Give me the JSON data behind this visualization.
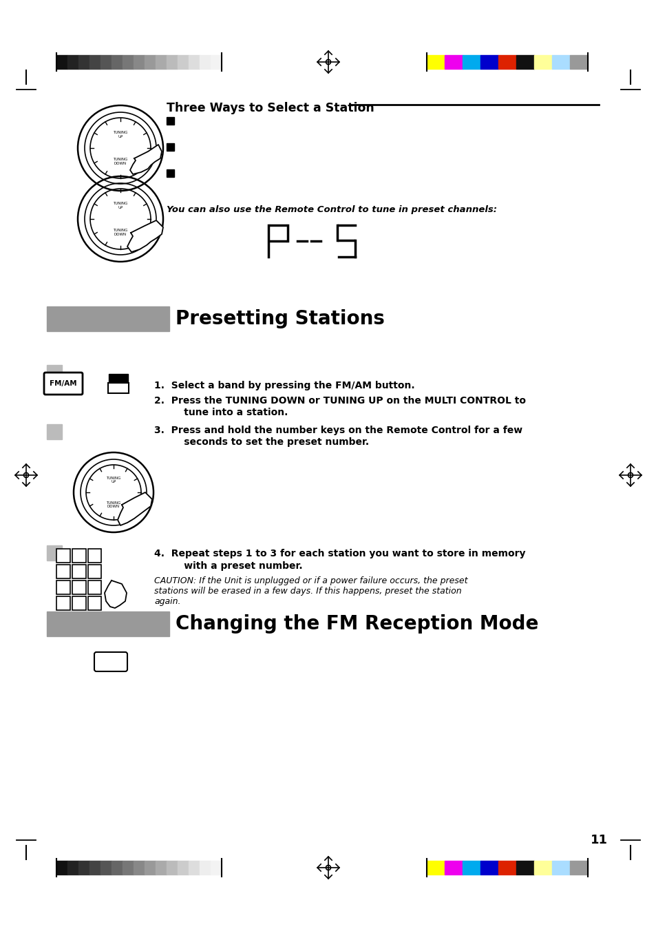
{
  "page_bg": "#ffffff",
  "section_bar_color": "#999999",
  "title_three_ways": "Three Ways to Select a Station",
  "title_presetting": "Presetting Stations",
  "title_fm": "Changing the FM Reception Mode",
  "step1": "1.  Select a band by pressing the FM/AM button.",
  "step2_line1": "2.  Press the TUNING DOWN or TUNING UP on the MULTI CONTROL to",
  "step2_line2": "      tune into a station.",
  "step3_line1": "3.  Press and hold the number keys on the Remote Control for a few",
  "step3_line2": "      seconds to set the preset number.",
  "step4_line1": "4.  Repeat steps 1 to 3 for each station you want to store in memory",
  "step4_line2": "      with a preset number.",
  "caution_line1": "CAUTION: If the Unit is unplugged or if a power failure occurs, the preset",
  "caution_line2": "stations will be erased in a few days. If this happens, preset the station",
  "caution_line3": "again.",
  "remote_note": "You can also use the Remote Control to tune in preset channels:",
  "page_number": "11",
  "gray_bars_grayscale": [
    "#111",
    "#222",
    "#333",
    "#444",
    "#555",
    "#666",
    "#777",
    "#888",
    "#999",
    "#aaa",
    "#bbb",
    "#ccc",
    "#ddd",
    "#eee",
    "#f3f3f3"
  ],
  "gray_bars_color": [
    "#ffff00",
    "#ee00ee",
    "#00aaee",
    "#0000cc",
    "#dd2200",
    "#111111",
    "#ffff99",
    "#aaddff",
    "#999999"
  ]
}
